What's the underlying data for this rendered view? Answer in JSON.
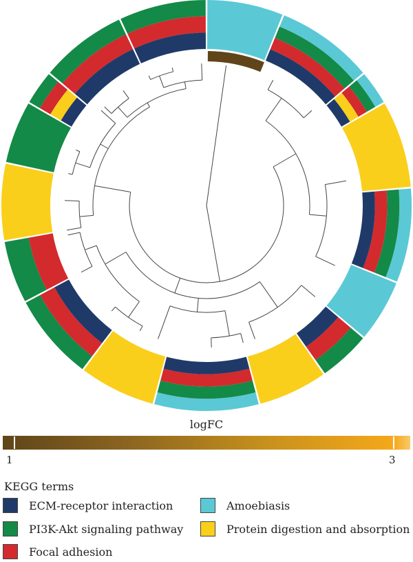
{
  "colorbar": {
    "title": "logFC",
    "min_label": "1",
    "max_label": "3",
    "low_color": "#5f4519",
    "high_color": "#f5a81a"
  },
  "legend": {
    "title": "KEGG terms",
    "items": [
      {
        "label": "ECM-receptor interaction",
        "color": "#1f3a68"
      },
      {
        "label": "Amoebiasis",
        "color": "#5bc8d6"
      },
      {
        "label": "PI3K-Akt signaling pathway",
        "color": "#138a47"
      },
      {
        "label": "Protein digestion and absorption",
        "color": "#f9cf1b"
      },
      {
        "label": "Focal adhesion",
        "color": "#d32a2e"
      }
    ]
  }
}
